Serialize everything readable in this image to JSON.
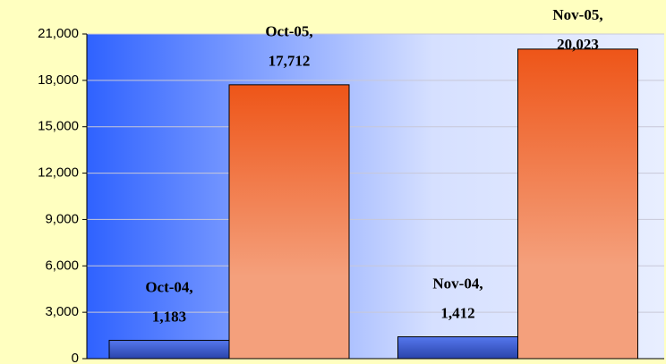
{
  "chart_data": {
    "type": "bar",
    "categories": [
      "Oct-04,",
      "Oct-05,",
      "Nov-04,",
      "Nov-05,"
    ],
    "values": [
      1183,
      17712,
      1412,
      20023
    ],
    "value_labels": [
      "1,183",
      "17,712",
      "1,412",
      "20,023"
    ],
    "colors": [
      "blue",
      "orange",
      "blue",
      "orange"
    ],
    "ylim": [
      0,
      21000
    ],
    "yticks": [
      {
        "value": 0,
        "label": "0"
      },
      {
        "value": 3000,
        "label": "3,000"
      },
      {
        "value": 6000,
        "label": "6,000"
      },
      {
        "value": 9000,
        "label": "9,000"
      },
      {
        "value": 12000,
        "label": "12,000"
      },
      {
        "value": 15000,
        "label": "15,000"
      },
      {
        "value": 18000,
        "label": "18,000"
      },
      {
        "value": 21000,
        "label": "21,000"
      }
    ],
    "grid": true
  }
}
